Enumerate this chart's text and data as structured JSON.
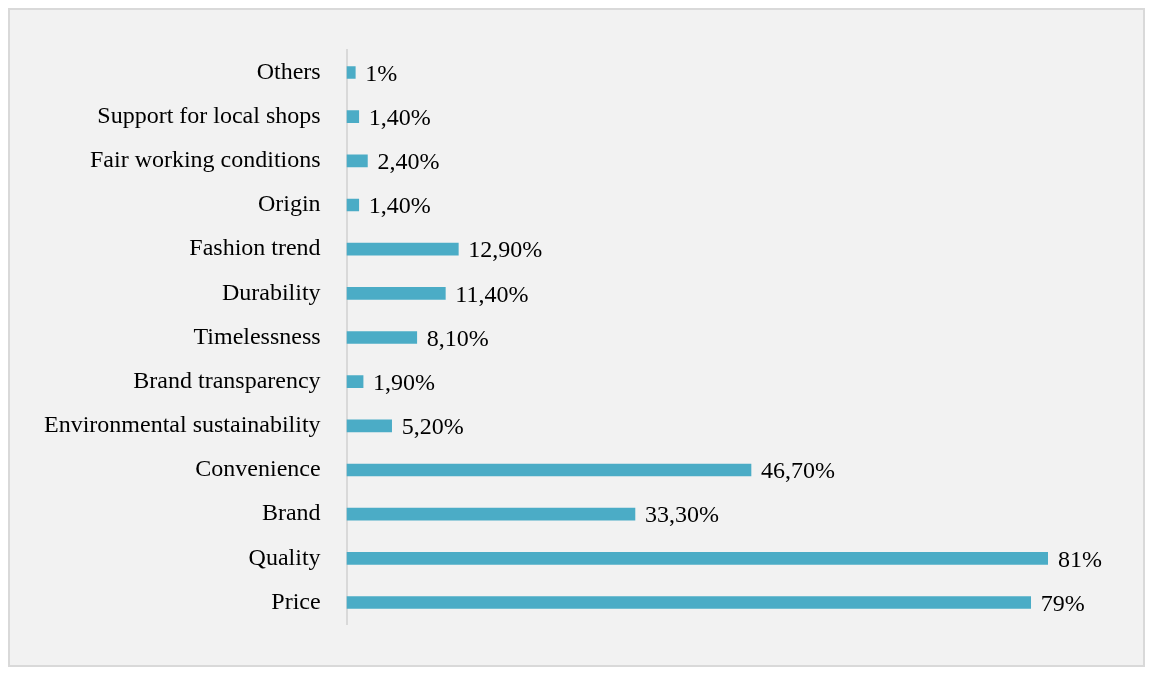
{
  "chart_data": {
    "type": "bar",
    "orientation": "horizontal",
    "categories": [
      "Others",
      "Support for local shops",
      "Fair working conditions",
      "Origin",
      "Fashion trend",
      "Durability",
      "Timelessness",
      "Brand transparency",
      "Environmental sustainability",
      "Convenience",
      "Brand",
      "Quality",
      "Price"
    ],
    "values": [
      1,
      1.4,
      2.4,
      1.4,
      12.9,
      11.4,
      8.1,
      1.9,
      5.2,
      46.7,
      33.3,
      81,
      79
    ],
    "value_labels": [
      "1%",
      "1,40%",
      "2,40%",
      "1,40%",
      "12,90%",
      "11,40%",
      "8,10%",
      "1,90%",
      "5,20%",
      "46,70%",
      "33,30%",
      "81%",
      "79%"
    ],
    "color": "#4bacc6"
  }
}
